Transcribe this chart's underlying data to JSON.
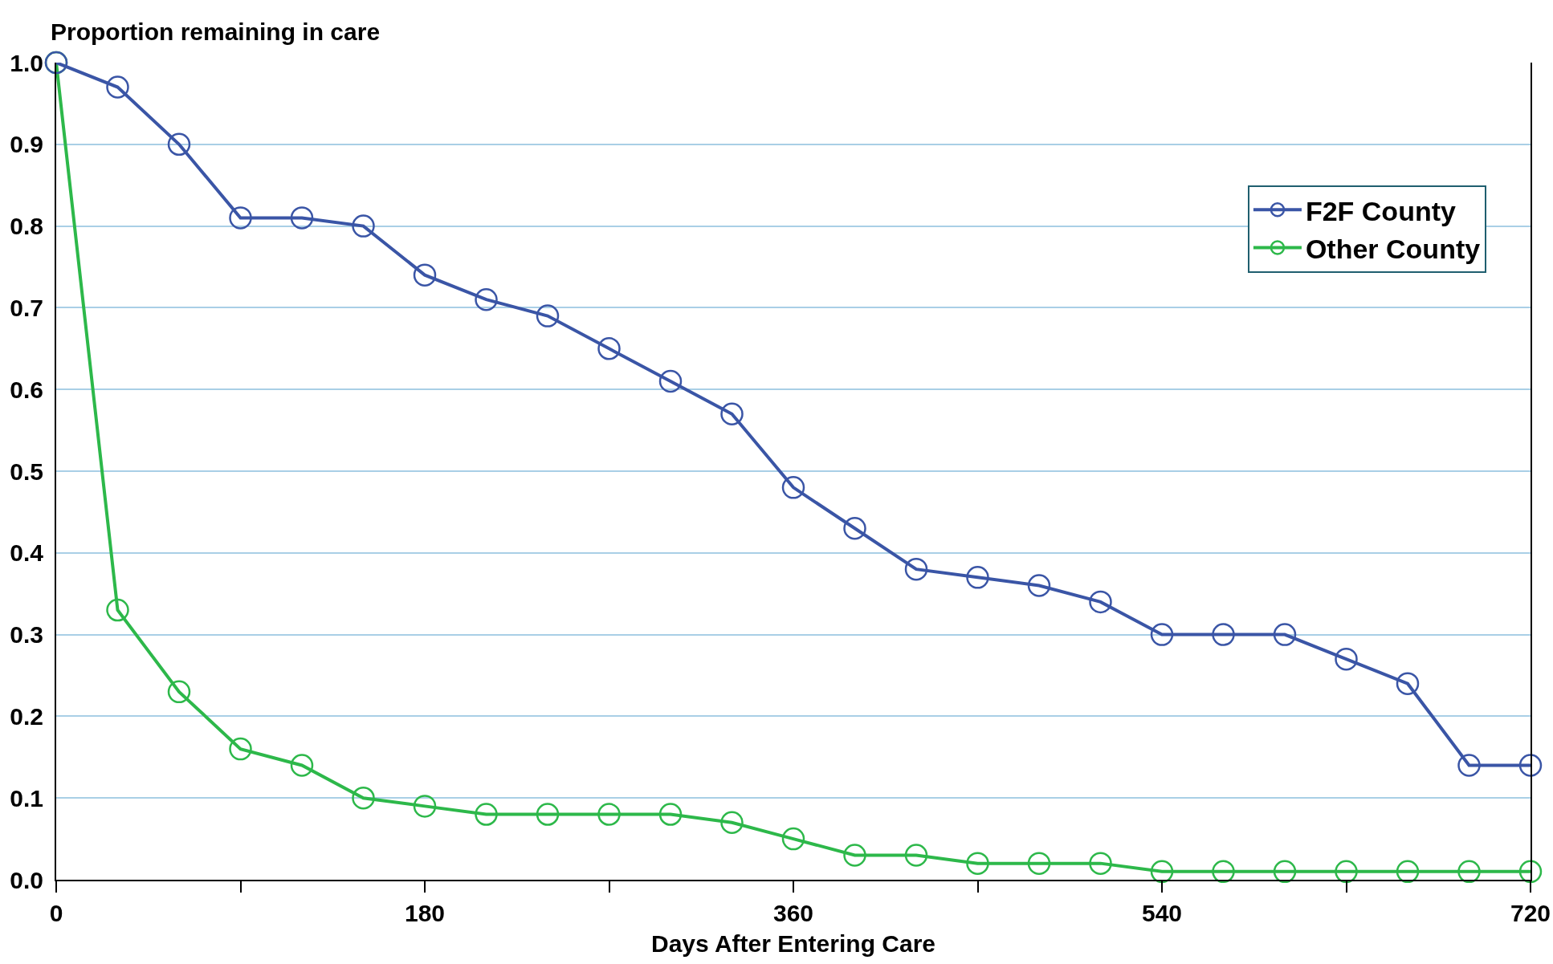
{
  "chart_data": {
    "type": "line",
    "xlabel": "Days After Entering Care",
    "ylabel": "Proportion remaining in care",
    "x": [
      0,
      30,
      60,
      90,
      120,
      150,
      180,
      210,
      240,
      270,
      300,
      330,
      360,
      390,
      420,
      450,
      480,
      510,
      540,
      570,
      600,
      630,
      660,
      690,
      720
    ],
    "series": [
      {
        "name": "F2F County",
        "color": "#3a55a6",
        "values": [
          1.0,
          0.97,
          0.9,
          0.81,
          0.81,
          0.8,
          0.74,
          0.71,
          0.69,
          0.65,
          0.61,
          0.57,
          0.48,
          0.43,
          0.38,
          0.37,
          0.36,
          0.34,
          0.3,
          0.3,
          0.3,
          0.27,
          0.24,
          0.14,
          0.14
        ]
      },
      {
        "name": "Other County",
        "color": "#2db84a",
        "values": [
          1.0,
          0.33,
          0.23,
          0.16,
          0.14,
          0.1,
          0.09,
          0.08,
          0.08,
          0.08,
          0.08,
          0.07,
          0.05,
          0.03,
          0.03,
          0.02,
          0.02,
          0.02,
          0.01,
          0.01,
          0.01,
          0.01,
          0.01,
          0.01,
          0.01
        ]
      }
    ],
    "xlim": [
      0,
      720
    ],
    "xticks": [
      0,
      {
        "value": 90,
        "label": null
      },
      180,
      {
        "value": 270,
        "label": null
      },
      360,
      {
        "value": 450,
        "label": null
      },
      540,
      {
        "value": 630,
        "label": null
      },
      720
    ],
    "ylim": [
      0,
      1
    ],
    "yticks": [
      {
        "value": 0,
        "label": "0.0"
      },
      0.1,
      0.2,
      0.3,
      0.4,
      0.5,
      0.6,
      0.7,
      0.8,
      0.9,
      {
        "value": 1,
        "label": "1.0"
      }
    ],
    "grid": "y",
    "legend": "top right",
    "marker": "circle",
    "line_style": "solid"
  }
}
